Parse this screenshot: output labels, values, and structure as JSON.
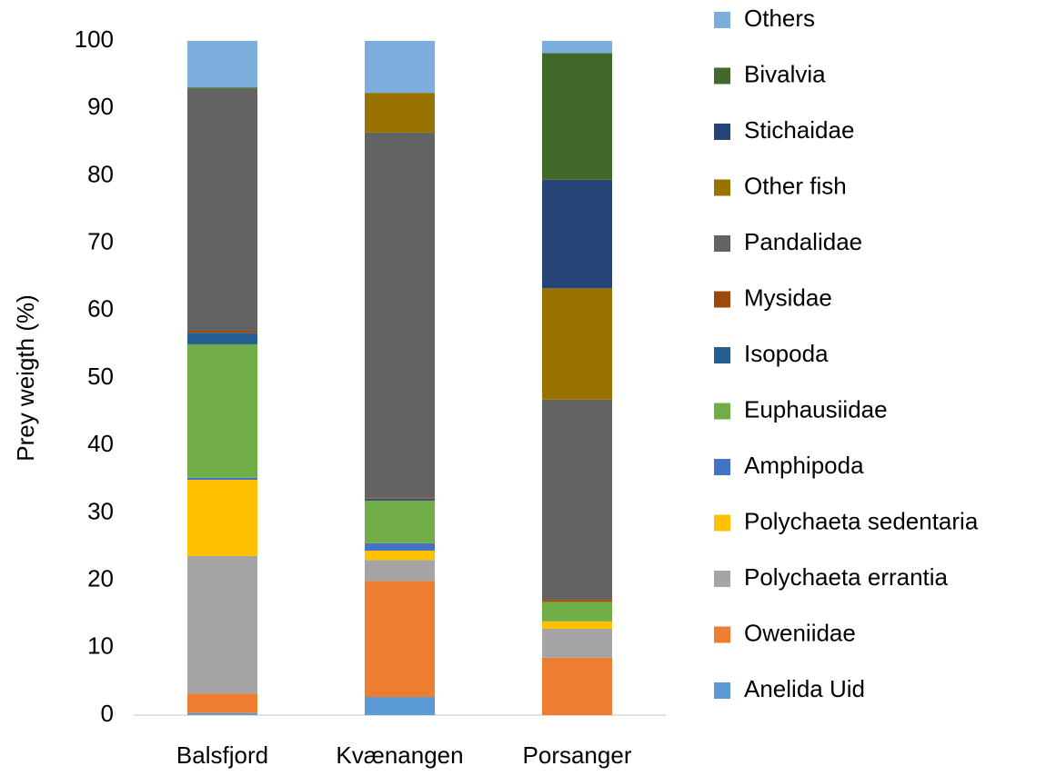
{
  "chart_data": {
    "type": "stacked_bar",
    "y_label": "Prey weigth (%)",
    "categories": [
      "Balsfjord",
      "Kvænangen",
      "Porsanger"
    ],
    "ylim": [
      0,
      100
    ],
    "yticks": [
      0,
      10,
      20,
      30,
      40,
      50,
      60,
      70,
      80,
      90,
      100
    ],
    "grid": false,
    "legend": "right",
    "series": [
      {
        "name": "Anelida Uid",
        "color": "#5b9bd5",
        "values": [
          0.3,
          2.7,
          0
        ]
      },
      {
        "name": "Oweniidae",
        "color": "#ed7d31",
        "values": [
          2.9,
          17.2,
          8.5
        ]
      },
      {
        "name": "Polychaeta errantia",
        "color": "#a5a5a5",
        "values": [
          20.4,
          3.1,
          4.3
        ]
      },
      {
        "name": "Polychaeta sedentaria",
        "color": "#ffc000",
        "values": [
          11.3,
          1.4,
          1.1
        ]
      },
      {
        "name": "Amphipoda",
        "color": "#4472c4",
        "values": [
          0.3,
          1.1,
          0
        ]
      },
      {
        "name": "Euphausiidae",
        "color": "#70ad47",
        "values": [
          19.8,
          6.3,
          2.9
        ]
      },
      {
        "name": "Isopoda",
        "color": "#255e91",
        "values": [
          1.7,
          0.3,
          0
        ]
      },
      {
        "name": "Mysidae",
        "color": "#9e480e",
        "values": [
          0.3,
          0.2,
          0.3
        ]
      },
      {
        "name": "Pandalidae",
        "color": "#636363",
        "values": [
          35.9,
          54.1,
          29.7
        ]
      },
      {
        "name": "Other fish",
        "color": "#997300",
        "values": [
          0,
          5.9,
          16.5
        ]
      },
      {
        "name": "Stichaidae",
        "color": "#264478",
        "values": [
          0,
          0,
          16.1
        ]
      },
      {
        "name": "Bivalvia",
        "color": "#43682b",
        "values": [
          0.2,
          0,
          18.8
        ]
      },
      {
        "name": "Others",
        "color": "#7cafdd",
        "values": [
          6.9,
          7.7,
          1.8
        ]
      }
    ]
  }
}
